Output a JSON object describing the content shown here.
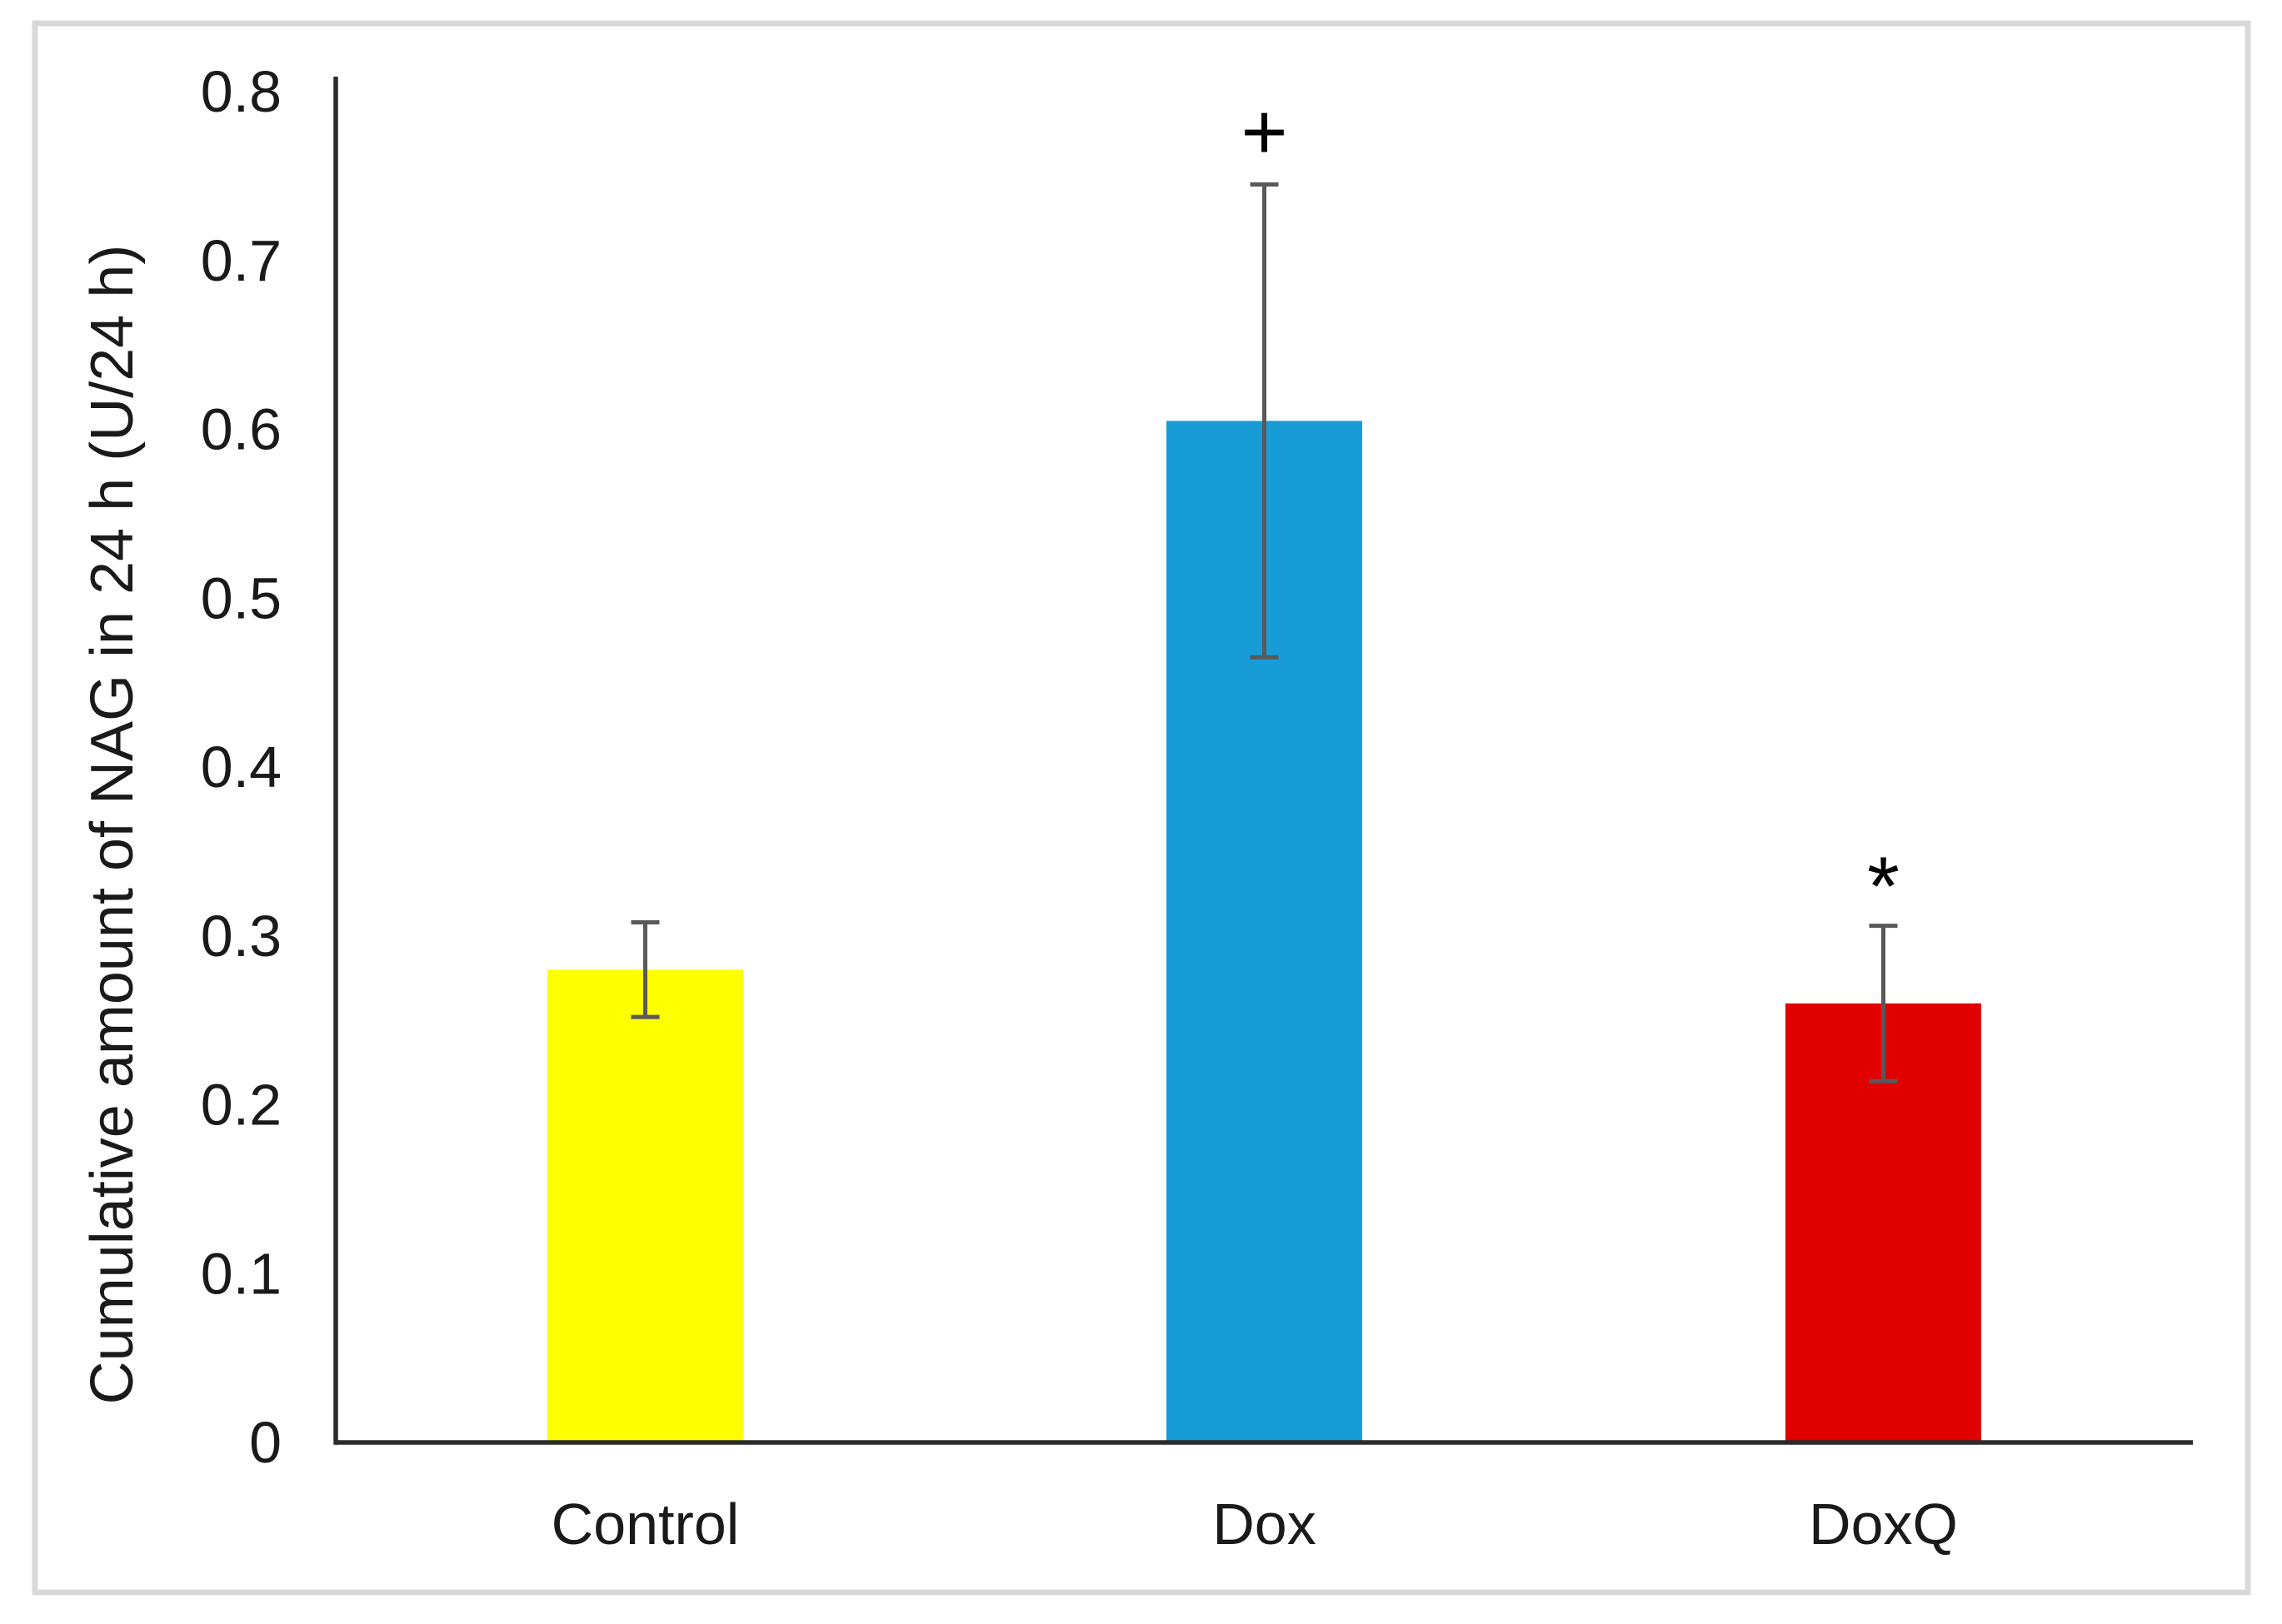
{
  "figure": {
    "background": "#ffffff",
    "border_color": "#d9d9d9"
  },
  "chart_data": {
    "type": "bar",
    "title": "",
    "xlabel": "",
    "ylabel": "Cumulative amount  of NAG  in 24 h (U/24 h)",
    "categories": [
      "Control",
      "Dox",
      "DoxQ"
    ],
    "series": [
      {
        "name": "",
        "values": [
          0.28,
          0.605,
          0.26
        ],
        "errors": [
          0.028,
          0.14,
          0.046
        ],
        "bar_colors": [
          "#ffff00",
          "#189cd8",
          "#e00000"
        ]
      }
    ],
    "annotations": [
      {
        "category": "Dox",
        "symbol": "+"
      },
      {
        "category": "DoxQ",
        "symbol": "*"
      }
    ],
    "ylim": [
      0,
      0.8
    ],
    "ytick_labels": [
      "0",
      "0.1",
      "0.2",
      "0.3",
      "0.4",
      "0.5",
      "0.6",
      "0.7",
      "0.8"
    ],
    "grid": false,
    "legend_position": "none",
    "colors": {
      "axis": "#2b2b2b",
      "error_bar": "#595959",
      "tick_text": "#1a1a1a",
      "annotation": "#000000"
    }
  }
}
